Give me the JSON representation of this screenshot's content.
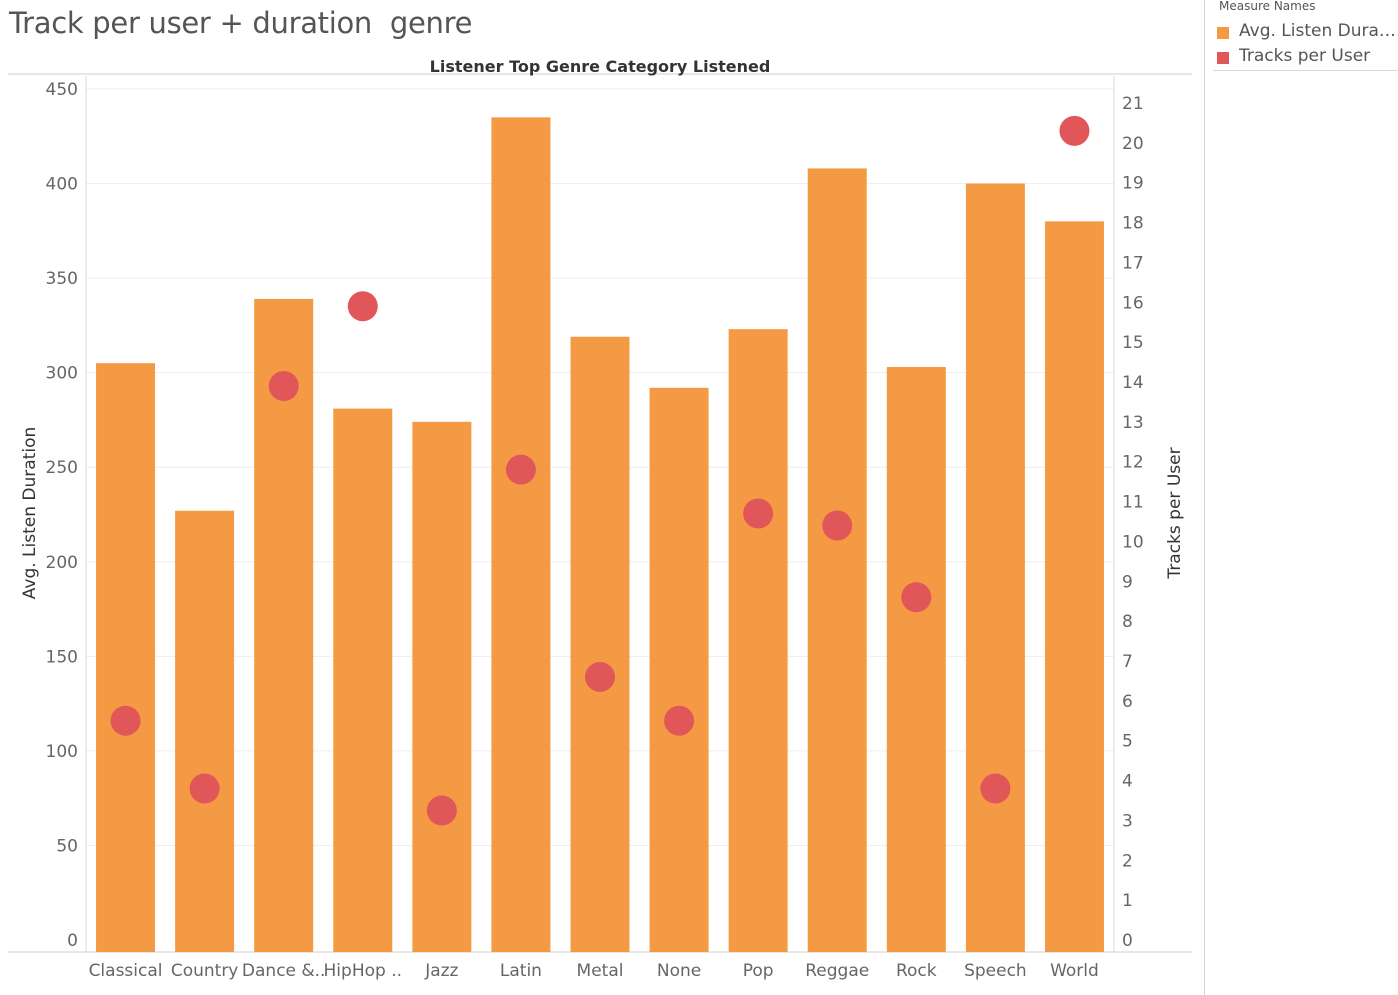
{
  "page": {
    "title": "Track per user + duration  genre"
  },
  "legend": {
    "title": "Measure Names",
    "items": [
      {
        "label": "Avg. Listen Durati..",
        "color": "#f49a45"
      },
      {
        "label": "Tracks per User",
        "color": "#e15759"
      }
    ]
  },
  "chart_data": {
    "type": "bar",
    "title": "Listener Top Genre Category Listened",
    "categories": [
      "Classical",
      "Country",
      "Dance &..",
      "HipHop ..",
      "Jazz",
      "Latin",
      "Metal",
      "None",
      "Pop",
      "Reggae",
      "Rock",
      "Speech",
      "World"
    ],
    "series": [
      {
        "name": "Avg. Listen Durati..",
        "mark": "bar",
        "axis": "left",
        "color": "#f49a45",
        "values": [
          305,
          227,
          339,
          281,
          274,
          435,
          319,
          292,
          323,
          408,
          303,
          400,
          380
        ]
      },
      {
        "name": "Tracks per User",
        "mark": "circle",
        "axis": "right",
        "color": "#e15759",
        "values": [
          5.5,
          3.8,
          13.9,
          15.9,
          3.25,
          11.8,
          6.6,
          5.5,
          10.7,
          10.4,
          8.6,
          3.8,
          20.3
        ]
      }
    ],
    "ylabel": "Avg. Listen Duration",
    "ylim": [
      0,
      455
    ],
    "yticks": [
      0,
      50,
      100,
      150,
      200,
      250,
      300,
      350,
      400,
      450
    ],
    "y2label": "Tracks per User",
    "y2lim": [
      0,
      21.4
    ],
    "y2ticks": [
      0,
      1,
      2,
      3,
      4,
      5,
      6,
      7,
      8,
      9,
      10,
      11,
      12,
      13,
      14,
      15,
      16,
      17,
      18,
      19,
      20,
      21
    ],
    "grid": true,
    "legend": "top-right"
  }
}
